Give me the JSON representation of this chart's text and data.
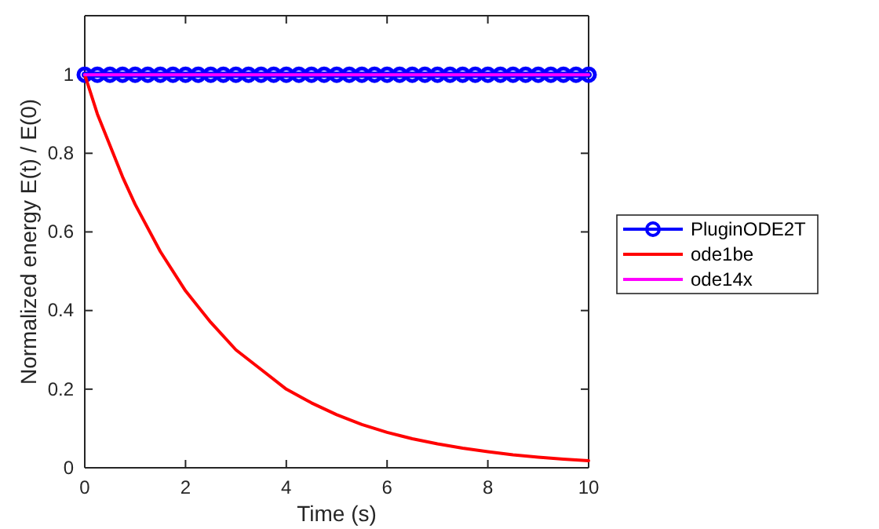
{
  "chart_data": {
    "type": "line",
    "xlabel": "Time (s)",
    "ylabel": "Normalized energy E(t) / E(0)",
    "xlim": [
      0,
      10
    ],
    "ylim": [
      0,
      1.15
    ],
    "xticks": [
      0,
      2,
      4,
      6,
      8,
      10
    ],
    "yticks": [
      0,
      0.2,
      0.4,
      0.6,
      0.8,
      1
    ],
    "legend": "right",
    "series": [
      {
        "name": "PluginODE2T",
        "color": "#0000ff",
        "marker": "circle",
        "x": [
          0,
          0.25,
          0.5,
          0.75,
          1,
          1.25,
          1.5,
          1.75,
          2,
          2.25,
          2.5,
          2.75,
          3,
          3.25,
          3.5,
          3.75,
          4,
          4.25,
          4.5,
          4.75,
          5,
          5.25,
          5.5,
          5.75,
          6,
          6.25,
          6.5,
          6.75,
          7,
          7.25,
          7.5,
          7.75,
          8,
          8.25,
          8.5,
          8.75,
          9,
          9.25,
          9.5,
          9.75,
          10
        ],
        "values": [
          1,
          1,
          1,
          1,
          1,
          1,
          1,
          1,
          1,
          1,
          1,
          1,
          1,
          1,
          1,
          1,
          1,
          1,
          1,
          1,
          1,
          1,
          1,
          1,
          1,
          1,
          1,
          1,
          1,
          1,
          1,
          1,
          1,
          1,
          1,
          1,
          1,
          1,
          1,
          1,
          1
        ]
      },
      {
        "name": "ode1be",
        "color": "#ff0000",
        "x": [
          0,
          0.25,
          0.5,
          0.75,
          1,
          1.5,
          2,
          2.5,
          3,
          3.5,
          4,
          4.5,
          5,
          5.5,
          6,
          6.5,
          7,
          7.5,
          8,
          8.5,
          9,
          9.5,
          10
        ],
        "values": [
          1,
          0.9,
          0.82,
          0.74,
          0.67,
          0.55,
          0.45,
          0.37,
          0.3,
          0.25,
          0.2,
          0.165,
          0.135,
          0.11,
          0.09,
          0.074,
          0.061,
          0.05,
          0.041,
          0.033,
          0.027,
          0.022,
          0.018
        ]
      },
      {
        "name": "ode14x",
        "color": "#ff00ff",
        "x": [
          0,
          2,
          4,
          6,
          8,
          10
        ],
        "values": [
          1,
          1,
          1,
          1,
          1,
          1
        ]
      }
    ]
  }
}
